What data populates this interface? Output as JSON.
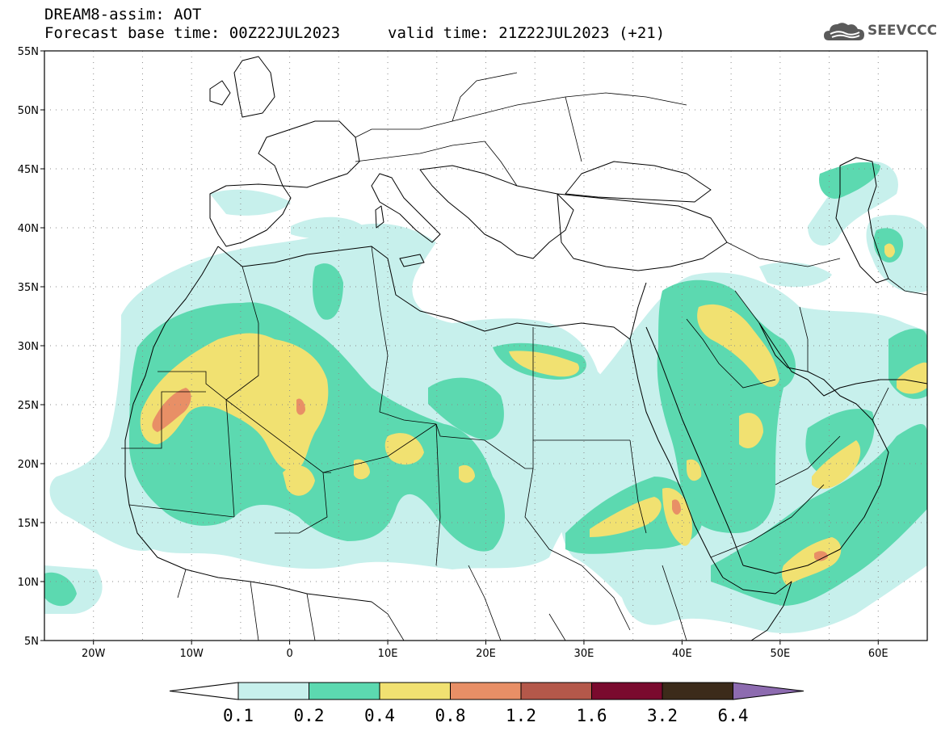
{
  "header": {
    "title": "DREAM8-assim: AOT",
    "base_time": "Forecast base time: 00Z22JUL2023",
    "valid_time": "valid time: 21Z22JUL2023 (+21)"
  },
  "logo": {
    "text": "SEEVCCC",
    "icon": "cloud-icon"
  },
  "map": {
    "lon_range": [
      -25,
      65
    ],
    "lat_range": [
      5,
      55
    ],
    "lat_labels": [
      "5N",
      "10N",
      "15N",
      "20N",
      "25N",
      "30N",
      "35N",
      "40N",
      "45N",
      "50N",
      "55N"
    ],
    "lat_values": [
      5,
      10,
      15,
      20,
      25,
      30,
      35,
      40,
      45,
      50,
      55
    ],
    "lon_labels": [
      "20W",
      "10W",
      "0",
      "10E",
      "20E",
      "30E",
      "40E",
      "50E",
      "60E"
    ],
    "lon_values": [
      -20,
      -10,
      0,
      10,
      20,
      30,
      40,
      50,
      60
    ],
    "grid": true
  },
  "colorbar": {
    "levels": [
      "0.1",
      "0.2",
      "0.4",
      "0.8",
      "1.2",
      "1.6",
      "3.2",
      "6.4"
    ],
    "colors": [
      "#c7f0ec",
      "#5cd9b0",
      "#f1e171",
      "#e88f66",
      "#b4584a",
      "#7a0a2e",
      "#3c2b1a",
      "#8d6bb0"
    ]
  },
  "fields": {
    "levels_by_color": [
      "#c7f0ec",
      "#5cd9b0",
      "#f1e171",
      "#e88f66"
    ]
  }
}
